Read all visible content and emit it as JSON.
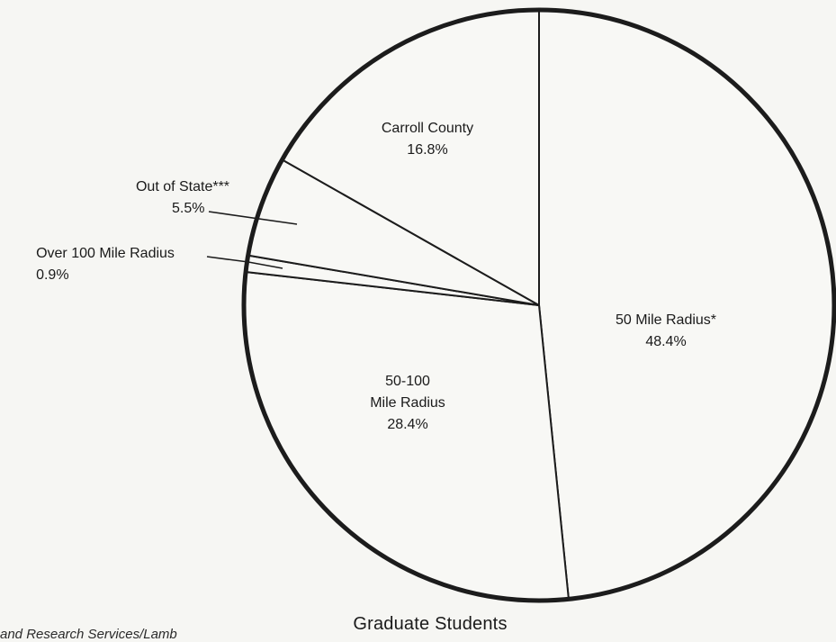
{
  "chart_data": {
    "type": "pie",
    "title": "Graduate Students",
    "slices": [
      {
        "label": "50 Mile Radius*",
        "value": 48.4,
        "display": "48.4%"
      },
      {
        "label": "50-100 Mile Radius",
        "label_lines": [
          "50-100",
          "Mile Radius"
        ],
        "value": 28.4,
        "display": "28.4%"
      },
      {
        "label": "Over 100 Mile Radius",
        "value": 0.9,
        "display": "0.9%"
      },
      {
        "label": "Out of State***",
        "value": 5.5,
        "display": "5.5%"
      },
      {
        "label": "Carroll County",
        "value": 16.8,
        "display": "16.8%"
      }
    ],
    "legend": "none",
    "grid": false
  },
  "footnote": "and Research Services/Lamb",
  "colors": {
    "outline": "#1c1c1c",
    "background": "#f6f6f3",
    "fill": "#f8f8f5"
  }
}
